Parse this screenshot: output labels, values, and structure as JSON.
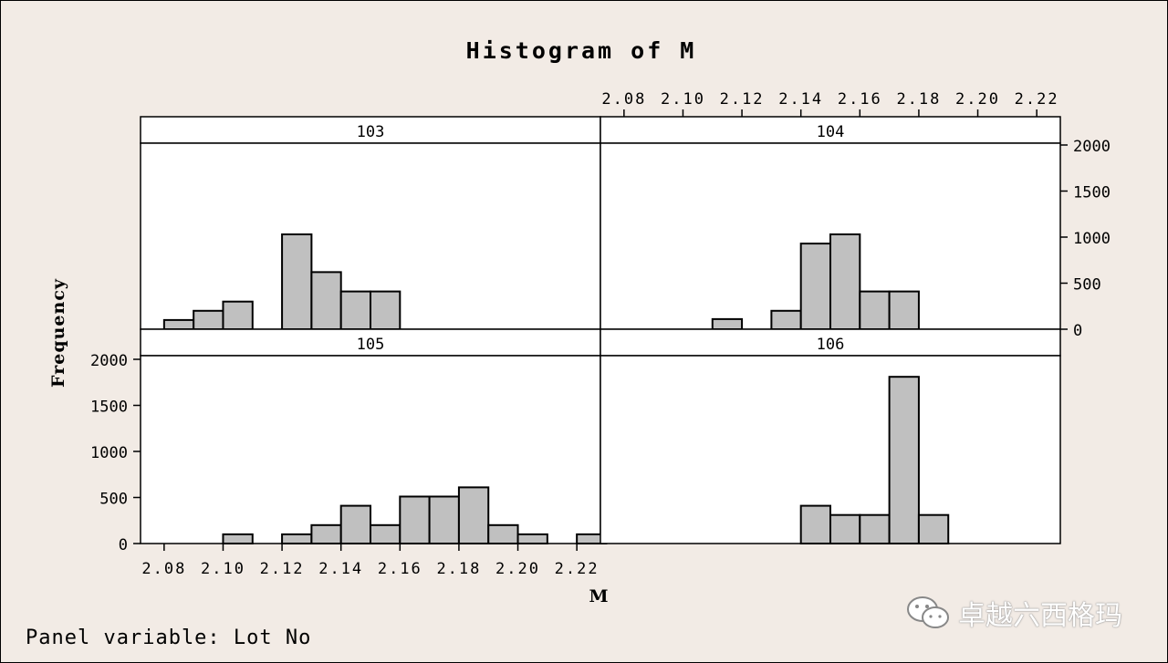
{
  "chart_data": {
    "type": "bar",
    "title": "Histogram of M",
    "xlabel": "M",
    "ylabel": "Frequency",
    "panel_variable_label": "Panel variable: Lot No",
    "x_ticks": [
      "2.08",
      "2.10",
      "2.12",
      "2.14",
      "2.16",
      "2.18",
      "2.20",
      "2.22"
    ],
    "xlim": [
      2.072,
      2.228
    ],
    "bin_width": 0.01,
    "y_ticks": [
      "0",
      "500",
      "1000",
      "1500",
      "2000"
    ],
    "ylim": [
      0,
      2000
    ],
    "bar_color": "#c0c0c0",
    "panels": [
      {
        "label": "103",
        "bins": [
          {
            "x": 2.085,
            "count": 100
          },
          {
            "x": 2.095,
            "count": 200
          },
          {
            "x": 2.105,
            "count": 300
          },
          {
            "x": 2.125,
            "count": 1030
          },
          {
            "x": 2.135,
            "count": 620
          },
          {
            "x": 2.145,
            "count": 410
          },
          {
            "x": 2.155,
            "count": 410
          }
        ]
      },
      {
        "label": "104",
        "bins": [
          {
            "x": 2.115,
            "count": 110
          },
          {
            "x": 2.135,
            "count": 200
          },
          {
            "x": 2.145,
            "count": 930
          },
          {
            "x": 2.155,
            "count": 1030
          },
          {
            "x": 2.165,
            "count": 410
          },
          {
            "x": 2.175,
            "count": 410
          }
        ]
      },
      {
        "label": "105",
        "bins": [
          {
            "x": 2.105,
            "count": 100
          },
          {
            "x": 2.125,
            "count": 100
          },
          {
            "x": 2.135,
            "count": 200
          },
          {
            "x": 2.145,
            "count": 410
          },
          {
            "x": 2.155,
            "count": 200
          },
          {
            "x": 2.165,
            "count": 510
          },
          {
            "x": 2.175,
            "count": 510
          },
          {
            "x": 2.185,
            "count": 610
          },
          {
            "x": 2.195,
            "count": 200
          },
          {
            "x": 2.205,
            "count": 100
          },
          {
            "x": 2.225,
            "count": 100
          }
        ]
      },
      {
        "label": "106",
        "bins": [
          {
            "x": 2.145,
            "count": 410
          },
          {
            "x": 2.155,
            "count": 310
          },
          {
            "x": 2.165,
            "count": 310
          },
          {
            "x": 2.175,
            "count": 1810
          },
          {
            "x": 2.185,
            "count": 310
          }
        ]
      }
    ]
  },
  "watermark": {
    "icon": "wechat-icon",
    "text": "卓越六西格玛"
  }
}
